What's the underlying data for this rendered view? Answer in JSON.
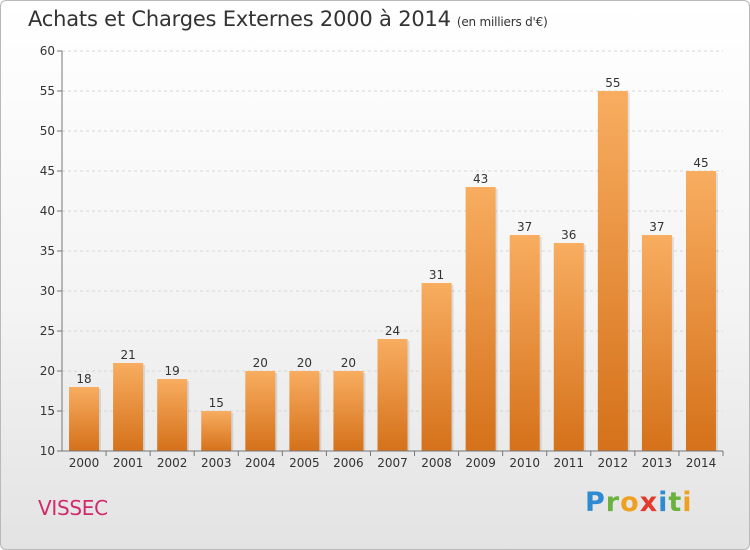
{
  "header": {
    "title": "Achats et Charges Externes 2000 à 2014",
    "unit": "(en milliers d'€)"
  },
  "footer": {
    "place": "VISSEC",
    "brand": "Proxiti"
  },
  "colors": {
    "bar_light": "#f7a95a",
    "bar_dark": "#d8741c",
    "place": "#d02a6b"
  },
  "chart_data": {
    "type": "bar",
    "title": "Achats et Charges Externes 2000 à 2014",
    "xlabel": "",
    "ylabel": "(en milliers d'€)",
    "categories": [
      "2000",
      "2001",
      "2002",
      "2003",
      "2004",
      "2005",
      "2006",
      "2007",
      "2008",
      "2009",
      "2010",
      "2011",
      "2012",
      "2013",
      "2014"
    ],
    "values": [
      18,
      21,
      19,
      15,
      20,
      20,
      20,
      24,
      31,
      43,
      37,
      36,
      55,
      37,
      45
    ],
    "ylim": [
      10,
      60
    ],
    "yticks": [
      10,
      15,
      20,
      25,
      30,
      35,
      40,
      45,
      50,
      55,
      60
    ],
    "grid": true
  }
}
